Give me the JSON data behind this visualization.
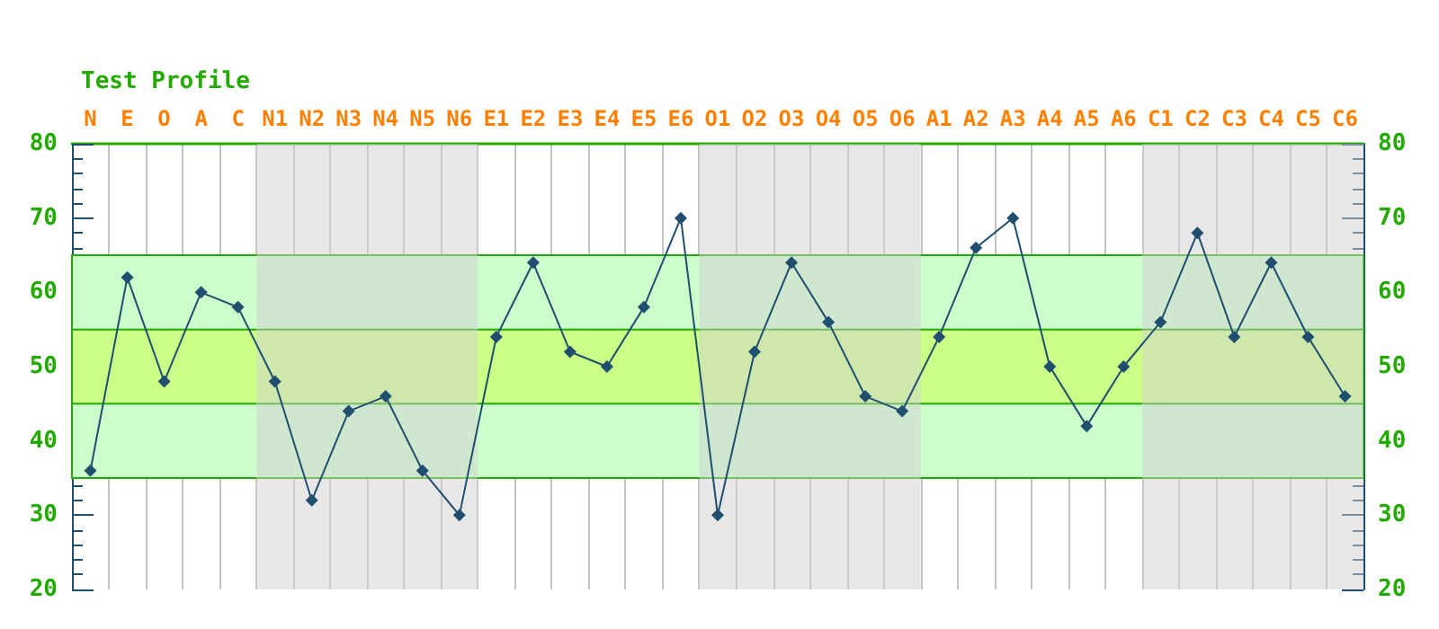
{
  "chart_data": {
    "type": "line",
    "title": "Test Profile",
    "categories": [
      "N",
      "E",
      "O",
      "A",
      "C",
      "N1",
      "N2",
      "N3",
      "N4",
      "N5",
      "N6",
      "E1",
      "E2",
      "E3",
      "E4",
      "E5",
      "E6",
      "O1",
      "O2",
      "O3",
      "O4",
      "O5",
      "O6",
      "A1",
      "A2",
      "A3",
      "A4",
      "A5",
      "A6",
      "C1",
      "C2",
      "C3",
      "C4",
      "C5",
      "C6"
    ],
    "series": [
      {
        "color": "#1f4e6e",
        "values": [
          36,
          62,
          48,
          60,
          58,
          48,
          32,
          44,
          46,
          36,
          30,
          54,
          64,
          52,
          50,
          58,
          70,
          30,
          52,
          64,
          56,
          46,
          44,
          54,
          66,
          70,
          50,
          42,
          50,
          56,
          68,
          54,
          64,
          54,
          46
        ]
      }
    ],
    "ylim": [
      20,
      80
    ],
    "yticks": [
      20,
      30,
      40,
      50,
      60,
      70,
      80
    ],
    "y2lim": [
      20,
      80
    ],
    "y2ticks": [
      20,
      30,
      40,
      50,
      60,
      70,
      80
    ],
    "bands": [
      {
        "axis": "y",
        "from": 35,
        "to": 65,
        "color": "#ccffcc"
      },
      {
        "axis": "y",
        "from": 45,
        "to": 55,
        "color": "#ccff88"
      },
      {
        "axis": "x",
        "from": "N1",
        "to": "N6",
        "color": "#d0d0d0"
      },
      {
        "axis": "x",
        "from": "O1",
        "to": "O6",
        "color": "#d0d0d0"
      },
      {
        "axis": "x",
        "from": "C1",
        "to": "C6",
        "color": "#d0d0d0"
      }
    ],
    "grid": "x",
    "marker": "diamond",
    "line_style": "solid"
  }
}
